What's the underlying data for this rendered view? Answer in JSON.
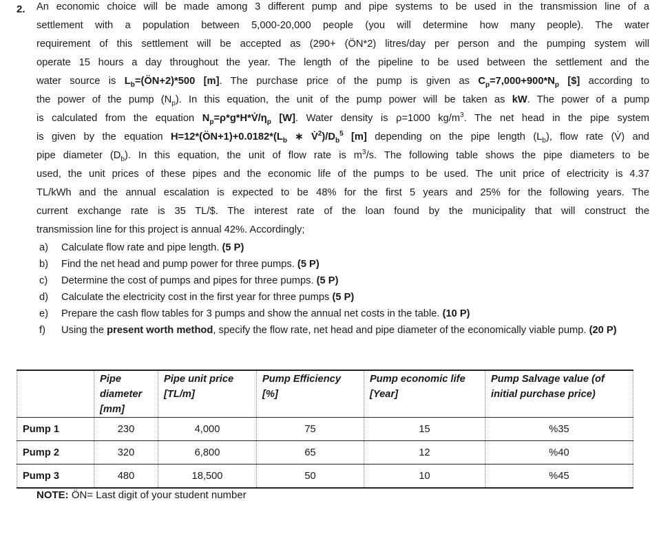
{
  "question_number": "2.",
  "paragraph": [
    [
      {
        "t": "An economic choice will be made among 3 different pump and pipe systems to be used in the transmission line of a"
      }
    ],
    [
      {
        "t": "settlement with a population between 5,000-20,000 people (you will determine how many people). The water"
      }
    ],
    [
      {
        "t": "requirement of this settlement will be accepted as (290+ (ÖN*2) litres/day per person and the pumping system will"
      }
    ],
    [
      {
        "t": "operate 15 hours a day throughout the year.  The length of the pipeline to be used between the settlement and the"
      }
    ],
    [
      {
        "t": "water source is "
      },
      {
        "t": "L",
        "b": 1
      },
      {
        "t": "b",
        "b": 1,
        "sub": 1
      },
      {
        "t": "=(ÖN+2)*500 [m]",
        "b": 1
      },
      {
        "t": ". The purchase price of the pump is given as "
      },
      {
        "t": "C",
        "b": 1
      },
      {
        "t": "p",
        "b": 1,
        "sub": 1
      },
      {
        "t": "=7,000+900*N",
        "b": 1
      },
      {
        "t": "p",
        "b": 1,
        "sub": 1
      },
      {
        "t": " [$]",
        "b": 1
      },
      {
        "t": " according to"
      }
    ],
    [
      {
        "t": "the power of the pump (N"
      },
      {
        "t": "p",
        "sub": 1
      },
      {
        "t": "). In this equation, the unit of the pump power will be taken as "
      },
      {
        "t": "kW",
        "b": 1
      },
      {
        "t": ". The power of a pump"
      }
    ],
    [
      {
        "t": "is calculated from the equation "
      },
      {
        "t": "N",
        "b": 1
      },
      {
        "t": "p",
        "b": 1,
        "sub": 1
      },
      {
        "t": "=ρ*g*H*V̇/η",
        "b": 1
      },
      {
        "t": "p",
        "b": 1,
        "sub": 1
      },
      {
        "t": " [W]",
        "b": 1
      },
      {
        "t": ". Water density is ρ=1000 kg/m"
      },
      {
        "t": "3",
        "sup": 1
      },
      {
        "t": ". The net head in the pipe system"
      }
    ],
    [
      {
        "t": "is given by the equation "
      },
      {
        "t": "H=12*(ÖN+1)+0.0182*(L",
        "b": 1
      },
      {
        "t": "b",
        "b": 1,
        "sub": 1
      },
      {
        "t": " ∗ V̇",
        "b": 1
      },
      {
        "t": "2",
        "b": 1,
        "sup": 1
      },
      {
        "t": ")/D",
        "b": 1
      },
      {
        "t": "b",
        "b": 1,
        "sub": 1
      },
      {
        "t": "5",
        "b": 1,
        "sup": 1
      },
      {
        "t": " [m]",
        "b": 1
      },
      {
        "t": " depending on the pipe length (L"
      },
      {
        "t": "b",
        "sub": 1
      },
      {
        "t": "), flow rate (V̇) and"
      }
    ],
    [
      {
        "t": "pipe diameter (D"
      },
      {
        "t": "b",
        "sub": 1
      },
      {
        "t": "). In this equation, the unit of flow rate is m"
      },
      {
        "t": "3",
        "sup": 1
      },
      {
        "t": "/s. The following table shows the pipe diameters to be"
      }
    ],
    [
      {
        "t": "used, the unit prices of these pipes and the economic life of the pumps to be used. The unit price of electricity is 4.37"
      }
    ],
    [
      {
        "t": "TL/kWh and the annual escalation is expected to be 48% for the first 5 years and 25% for the following years. The"
      }
    ],
    [
      {
        "t": "current exchange rate is 35 TL/$. The interest rate of the loan found by the municipality that will construct the"
      }
    ],
    [
      {
        "t": "transmission line for this project is annual 42%. Accordingly;"
      }
    ]
  ],
  "tasks": [
    {
      "letter": "a)",
      "runs": [
        {
          "t": "Calculate flow rate and pipe length. "
        },
        {
          "t": "(5 P)",
          "b": 1
        }
      ]
    },
    {
      "letter": "b)",
      "runs": [
        {
          "t": "Find the net head and pump power for three pumps. "
        },
        {
          "t": "(5 P)",
          "b": 1
        }
      ]
    },
    {
      "letter": "c)",
      "runs": [
        {
          "t": "Determine the cost of pumps and pipes for three pumps. "
        },
        {
          "t": "(5 P)",
          "b": 1
        }
      ]
    },
    {
      "letter": "d)",
      "runs": [
        {
          "t": "Calculate the electricity cost in the first year for three pumps "
        },
        {
          "t": "(5 P)",
          "b": 1
        }
      ]
    },
    {
      "letter": "e)",
      "runs": [
        {
          "t": "Prepare the cash flow tables for 3 pumps and show the annual net costs in the table. "
        },
        {
          "t": "(10 P)",
          "b": 1
        }
      ]
    },
    {
      "letter": "f)",
      "runs": [
        {
          "t": "Using the "
        },
        {
          "t": "present worth method",
          "b": 1
        },
        {
          "t": ", specify the flow rate, net head and pipe diameter of the economically viable pump. "
        },
        {
          "t": "(20 P)",
          "b": 1
        }
      ]
    }
  ],
  "table": {
    "headers": [
      "",
      "Pipe diameter [mm]",
      "Pipe unit price [TL/m]",
      "Pump Efficiency [%]",
      "Pump economic life [Year]",
      "Pump Salvage value (of initial purchase price)"
    ],
    "rows": [
      [
        "Pump 1",
        "230",
        "4,000",
        "75",
        "15",
        "%35"
      ],
      [
        "Pump 2",
        "320",
        "6,800",
        "65",
        "12",
        "%40"
      ],
      [
        "Pump 3",
        "480",
        "18,500",
        "50",
        "10",
        "%45"
      ]
    ]
  },
  "note": {
    "label": "NOTE:",
    "text": " ÖN= Last digit of your student number"
  }
}
